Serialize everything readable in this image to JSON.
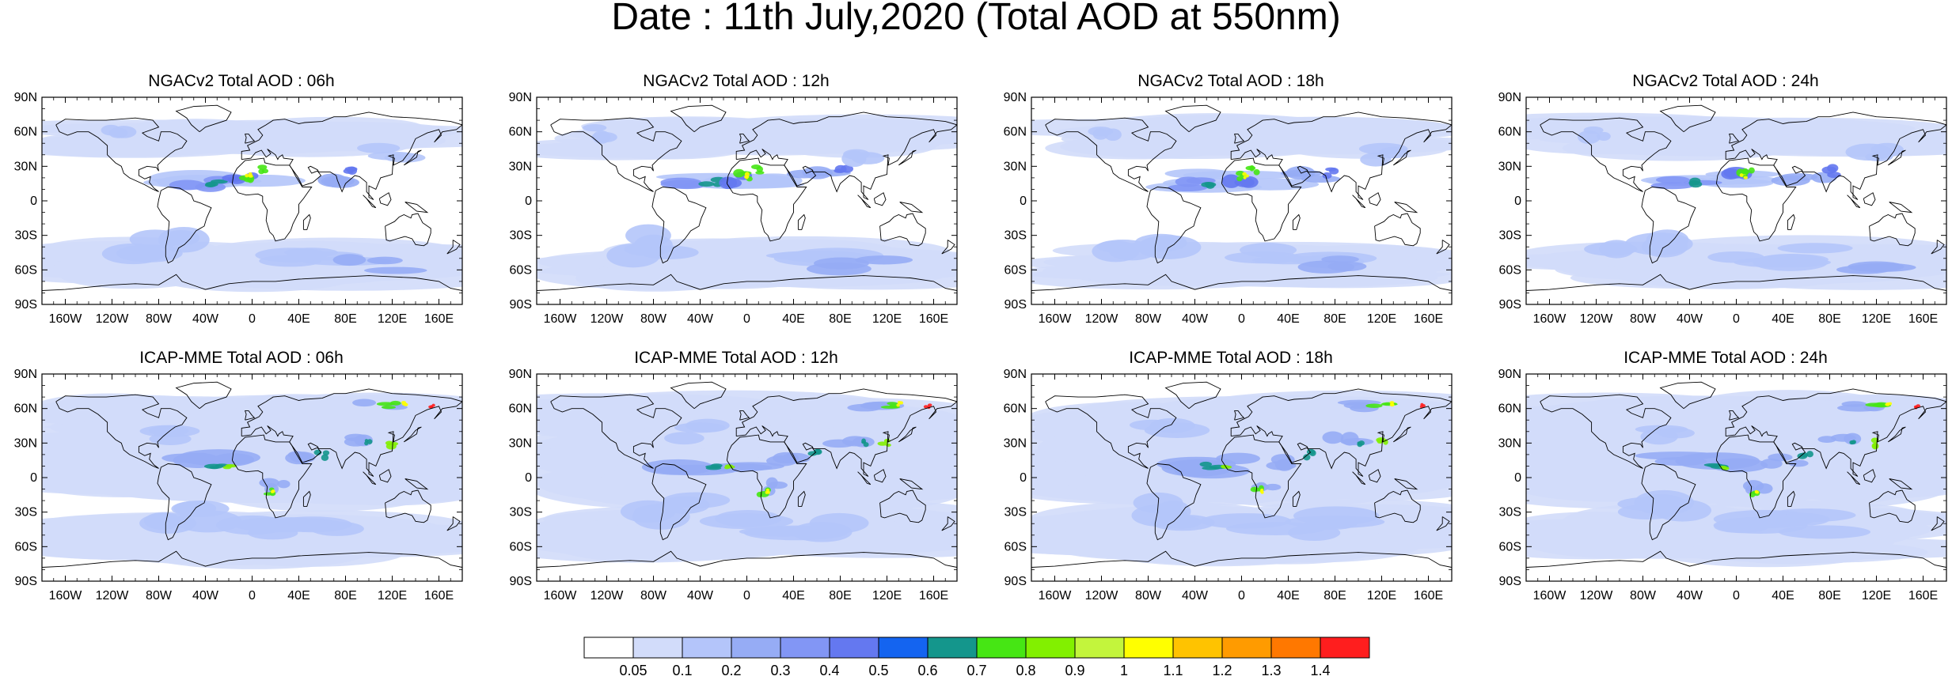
{
  "title": "Date : 11th July,2020 (Total AOD at 550nm)",
  "rows": [
    {
      "model": "NGACv2",
      "panels": [
        {
          "title": "NGACv2 Total AOD : 06h"
        },
        {
          "title": "NGACv2 Total AOD : 12h"
        },
        {
          "title": "NGACv2 Total AOD : 18h"
        },
        {
          "title": "NGACv2 Total AOD : 24h"
        }
      ]
    },
    {
      "model": "ICAP-MME",
      "panels": [
        {
          "title": "ICAP-MME Total AOD : 06h"
        },
        {
          "title": "ICAP-MME Total AOD : 12h"
        },
        {
          "title": "ICAP-MME Total AOD : 18h"
        },
        {
          "title": "ICAP-MME Total AOD : 24h"
        }
      ]
    }
  ],
  "lat_ticks": [
    "90N",
    "60N",
    "30N",
    "0",
    "30S",
    "60S",
    "90S"
  ],
  "lat_values": [
    90,
    60,
    30,
    0,
    -30,
    -60,
    -90
  ],
  "lon_ticks": [
    "160W",
    "120W",
    "80W",
    "40W",
    "0",
    "40E",
    "80E",
    "120E",
    "160E"
  ],
  "lon_values": [
    -160,
    -120,
    -80,
    -40,
    0,
    40,
    80,
    120,
    160
  ],
  "colorbar": {
    "labels": [
      "0.05",
      "0.1",
      "0.2",
      "0.3",
      "0.4",
      "0.5",
      "0.6",
      "0.7",
      "0.8",
      "0.9",
      "1",
      "1.1",
      "1.2",
      "1.3",
      "1.4"
    ],
    "colors": [
      "#ffffff",
      "#d2dcfa",
      "#b4c5fa",
      "#96acf5",
      "#8296f5",
      "#6478f0",
      "#1464f0",
      "#14968c",
      "#46e614",
      "#82f000",
      "#c3f53c",
      "#ffff00",
      "#ffc300",
      "#ff9b00",
      "#ff7800",
      "#ff1e1e"
    ]
  }
}
